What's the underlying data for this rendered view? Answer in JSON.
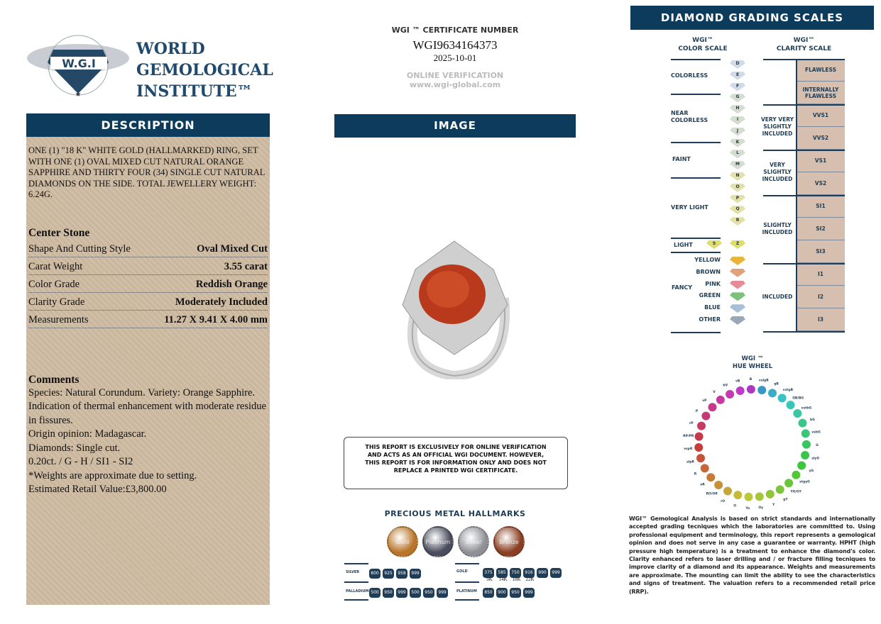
{
  "header": {
    "org_line1": "WORLD",
    "org_line2": "GEMOLOGICAL",
    "org_line3": "INSTITUTE™",
    "logo_text": "W.G.I",
    "logo_ring": "WORLD GEMOLOGICAL INSTITUTE"
  },
  "certificate": {
    "label": "WGI ™ CERTIFICATE NUMBER",
    "number": "WGI9634164373",
    "date": "2025-10-01",
    "verify_label": "ONLINE VERIFICATION",
    "verify_url": "www.wgi-global.com"
  },
  "description": {
    "title": "DESCRIPTION",
    "text": "ONE (1) \"18 K\" WHITE GOLD (HALLMARKED) RING, SET WITH ONE (1) OVAL MIXED CUT NATURAL ORANGE SAPPHIRE AND THIRTY FOUR (34) SINGLE CUT NATURAL DIAMONDS ON THE SIDE. TOTAL JEWELLERY WEIGHT: 6.24g.",
    "center_stone_title": "Center Stone",
    "rows": [
      {
        "label": "Shape And Cutting Style",
        "value": "Oval Mixed Cut"
      },
      {
        "label": "Carat Weight",
        "value": "3.55 carat"
      },
      {
        "label": "Color Grade",
        "value": "Reddish Orange"
      },
      {
        "label": "Clarity Grade",
        "value": "Moderately Included"
      },
      {
        "label": "Measurements",
        "value": "11.27 X 9.41 X 4.00 mm"
      }
    ],
    "comments_title": "Comments",
    "comments": [
      "Species: Natural Corundum. Variety: Orange Sapphire.",
      "Indication of thermal enhancement with moderate residue in fissures.",
      "Origin opinion: Madagascar.",
      "Diamonds: Single cut.",
      "0.20ct. / G - H / SI1 - SI2",
      "*Weights are approximate due to setting.",
      "Estimated Retail Value:£3,800.00"
    ]
  },
  "image_section": {
    "title": "IMAGE",
    "disclaimer": "THIS REPORT IS EXCLUSIVELY FOR ONLINE VERIFICATION AND ACTS AS AN OFFICIAL WGI DOCUMENT. HOWEVER, THIS REPORT IS FOR INFORMATION ONLY AND DOES NOT REPLACE A PRINTED WGI CERTIFICATE."
  },
  "hallmarks": {
    "title": "PRECIOUS METAL HALLMARKS",
    "coins": [
      {
        "label": "Gold",
        "color": "#b8752a"
      },
      {
        "label": "Platinum",
        "color": "#4a4d5e"
      },
      {
        "label": "Silver",
        "color": "#8e9096"
      },
      {
        "label": "Bronze",
        "color": "#8a3e22"
      }
    ],
    "silver_label": "SILVER",
    "silver": [
      "800",
      "925",
      "958",
      "999"
    ],
    "gold_label": "GOLD",
    "gold": [
      "375",
      "585",
      "750",
      "916",
      "990",
      "999"
    ],
    "gold_karats": [
      "9K",
      "14K",
      "18K",
      "22K"
    ],
    "palladium_label": "PALLADIUM",
    "palladium": [
      "500",
      "950",
      "999",
      "500",
      "950",
      "999"
    ],
    "platinum_label": "PLATINUM",
    "platinum": [
      "850",
      "900",
      "950",
      "999"
    ]
  },
  "grading": {
    "title": "DIAMOND GRADING  SCALES",
    "color_scale_title1": "WGI™",
    "color_scale_title2": "COLOR SCALE",
    "clarity_scale_title1": "WGI™",
    "clarity_scale_title2": "CLARITY SCALE",
    "color_groups": [
      "COLORLESS",
      "NEAR COLORLESS",
      "FAINT",
      "VERY LIGHT",
      "LIGHT",
      "FANCY"
    ],
    "color_grades": [
      "D",
      "E",
      "F",
      "G",
      "H",
      "I",
      "J",
      "K",
      "L",
      "M",
      "N",
      "O",
      "P",
      "Q",
      "R"
    ],
    "light_grades": [
      "S",
      "Z"
    ],
    "fancy": [
      {
        "name": "YELLOW",
        "color": "#e8b53a"
      },
      {
        "name": "BROWN",
        "color": "#e0a27a"
      },
      {
        "name": "PINK",
        "color": "#e88a9a"
      },
      {
        "name": "GREEN",
        "color": "#7cc27a"
      },
      {
        "name": "BLUE",
        "color": "#a9bfd8"
      },
      {
        "name": "OTHER",
        "color": "#9aa7b4"
      }
    ],
    "clarity_grades": [
      "FLAWLESS",
      "INTERNALLY FLAWLESS",
      "VVS1",
      "VVS2",
      "VS1",
      "VS2",
      "SI1",
      "SI2",
      "SI3",
      "I1",
      "I2",
      "I3"
    ],
    "clarity_groups": [
      "",
      "VERY VERY SLIGHTLY INCLUDED",
      "VERY SLIGHTLY INCLUDED",
      "SLIGHTLY INCLUDED",
      "INCLUDED"
    ]
  },
  "hue_wheel": {
    "title1": "WGI ™",
    "title2": "HUE WHEEL",
    "labels": [
      "vslgB",
      "gB",
      "vstgB",
      "GB/BG",
      "vstbG",
      "bG",
      "vsbG",
      "G",
      "slyG",
      "yG",
      "stgyG",
      "YG/GY",
      "gY",
      "Y",
      "Oy",
      "Yo",
      "O",
      "rO",
      "RO/OR",
      "oR",
      "R",
      "slpR",
      "vspR",
      "RP/PR",
      "rP",
      "P",
      "vP",
      "V",
      "bV",
      "vB",
      "B"
    ]
  },
  "footer_text": "WGI™ Gemological Analysis is based on strict standards and internationally accepted grading tecniques which the laboratories are committed to. Using professional equipment and terminology, this report represents a gemological opinion and does not serve in any case a guarantee or warranty. HPHT (high pressure high temperature) is a treatment to enhance the diamond's color. Clarity enhanced refers to laser drilling and / or fracture filling tecniques to improve clarity of a diamond and its appearance. Weights and measurements are approximate. The mounting can limit the ability to see the characteristics and signs of treatment. The valuation refers to a recommended retail price (RRP).",
  "colors": {
    "navy": "#0d3b5c",
    "panel": "#cbb79e",
    "clarity_cell": "#d6bfae",
    "stone": "#b8391c"
  }
}
